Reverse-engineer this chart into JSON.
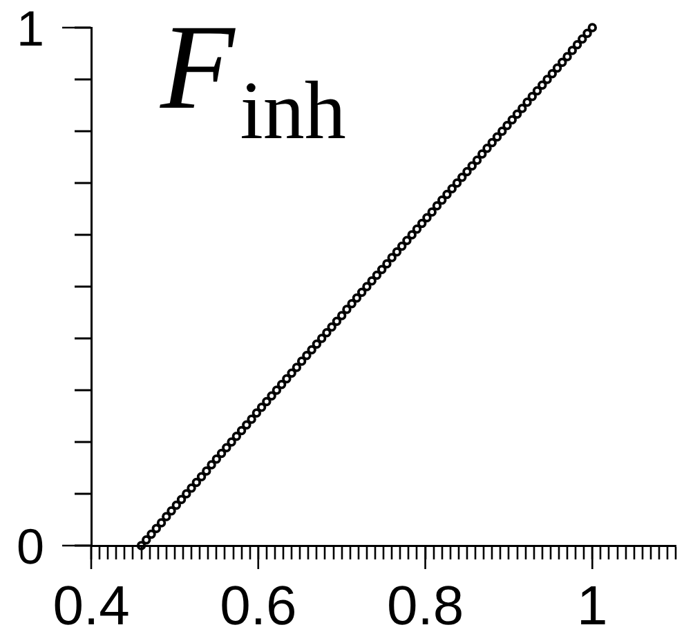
{
  "chart_data": {
    "type": "scatter",
    "title": "F$_{inh}$",
    "color": "#000000",
    "marker": "circle",
    "x": [
      0.46,
      0.466,
      0.472,
      0.478,
      0.484,
      0.49,
      0.496,
      0.502,
      0.508,
      0.514,
      0.52,
      0.526,
      0.532,
      0.538,
      0.544,
      0.55,
      0.556,
      0.562,
      0.568,
      0.574,
      0.58,
      0.586,
      0.592,
      0.598,
      0.604,
      0.61,
      0.616,
      0.622,
      0.628,
      0.634,
      0.64,
      0.646,
      0.652,
      0.658,
      0.664,
      0.67,
      0.676,
      0.682,
      0.688,
      0.694,
      0.7,
      0.706,
      0.712,
      0.718,
      0.724,
      0.73,
      0.736,
      0.742,
      0.748,
      0.754,
      0.76,
      0.766,
      0.772,
      0.778,
      0.784,
      0.79,
      0.796,
      0.802,
      0.808,
      0.814,
      0.82,
      0.826,
      0.832,
      0.838,
      0.844,
      0.85,
      0.856,
      0.862,
      0.868,
      0.874,
      0.88,
      0.886,
      0.892,
      0.898,
      0.904,
      0.91,
      0.916,
      0.922,
      0.928,
      0.934,
      0.94,
      0.946,
      0.952,
      0.958,
      0.964,
      0.97,
      0.976,
      0.982,
      0.988,
      0.994,
      1.0
    ],
    "values": [
      0,
      0.011,
      0.022,
      0.033,
      0.044,
      0.056,
      0.067,
      0.078,
      0.089,
      0.1,
      0.111,
      0.122,
      0.133,
      0.144,
      0.156,
      0.167,
      0.178,
      0.189,
      0.2,
      0.211,
      0.222,
      0.233,
      0.244,
      0.256,
      0.267,
      0.278,
      0.289,
      0.3,
      0.311,
      0.322,
      0.333,
      0.344,
      0.356,
      0.367,
      0.378,
      0.389,
      0.4,
      0.411,
      0.422,
      0.433,
      0.444,
      0.456,
      0.467,
      0.478,
      0.489,
      0.5,
      0.511,
      0.522,
      0.533,
      0.544,
      0.556,
      0.567,
      0.578,
      0.589,
      0.6,
      0.611,
      0.622,
      0.633,
      0.644,
      0.656,
      0.667,
      0.678,
      0.689,
      0.7,
      0.711,
      0.722,
      0.733,
      0.744,
      0.756,
      0.767,
      0.778,
      0.789,
      0.8,
      0.811,
      0.822,
      0.833,
      0.844,
      0.856,
      0.867,
      0.878,
      0.889,
      0.9,
      0.911,
      0.922,
      0.933,
      0.944,
      0.956,
      0.967,
      0.978,
      0.989,
      1
    ],
    "xlim": [
      0.4,
      1.1
    ],
    "xticks": [
      0.4,
      {
        "value": 0.41,
        "label": null
      },
      {
        "value": 0.42,
        "label": null
      },
      {
        "value": 0.43,
        "label": null
      },
      {
        "value": 0.44,
        "label": null
      },
      {
        "value": 0.45,
        "label": null
      },
      {
        "value": 0.46,
        "label": null
      },
      {
        "value": 0.47,
        "label": null
      },
      {
        "value": 0.48,
        "label": null
      },
      {
        "value": 0.49,
        "label": null
      },
      {
        "value": 0.5,
        "label": null
      },
      {
        "value": 0.51,
        "label": null
      },
      {
        "value": 0.52,
        "label": null
      },
      {
        "value": 0.53,
        "label": null
      },
      {
        "value": 0.54,
        "label": null
      },
      {
        "value": 0.55,
        "label": null
      },
      {
        "value": 0.56,
        "label": null
      },
      {
        "value": 0.57,
        "label": null
      },
      {
        "value": 0.58,
        "label": null
      },
      {
        "value": 0.59,
        "label": null
      },
      0.6,
      {
        "value": 0.61,
        "label": null
      },
      {
        "value": 0.62,
        "label": null
      },
      {
        "value": 0.63,
        "label": null
      },
      {
        "value": 0.64,
        "label": null
      },
      {
        "value": 0.65,
        "label": null
      },
      {
        "value": 0.66,
        "label": null
      },
      {
        "value": 0.67,
        "label": null
      },
      {
        "value": 0.68,
        "label": null
      },
      {
        "value": 0.69,
        "label": null
      },
      {
        "value": 0.7,
        "label": null
      },
      {
        "value": 0.71,
        "label": null
      },
      {
        "value": 0.72,
        "label": null
      },
      {
        "value": 0.73,
        "label": null
      },
      {
        "value": 0.74,
        "label": null
      },
      {
        "value": 0.75,
        "label": null
      },
      {
        "value": 0.76,
        "label": null
      },
      {
        "value": 0.77,
        "label": null
      },
      {
        "value": 0.78,
        "label": null
      },
      {
        "value": 0.79,
        "label": null
      },
      0.8,
      {
        "value": 0.81,
        "label": null
      },
      {
        "value": 0.82,
        "label": null
      },
      {
        "value": 0.83,
        "label": null
      },
      {
        "value": 0.84,
        "label": null
      },
      {
        "value": 0.85,
        "label": null
      },
      {
        "value": 0.86,
        "label": null
      },
      {
        "value": 0.87,
        "label": null
      },
      {
        "value": 0.88,
        "label": null
      },
      {
        "value": 0.89,
        "label": null
      },
      {
        "value": 0.9,
        "label": null
      },
      {
        "value": 0.91,
        "label": null
      },
      {
        "value": 0.92,
        "label": null
      },
      {
        "value": 0.93,
        "label": null
      },
      {
        "value": 0.94,
        "label": null
      },
      {
        "value": 0.95,
        "label": null
      },
      {
        "value": 0.96,
        "label": null
      },
      {
        "value": 0.97,
        "label": null
      },
      {
        "value": 0.98,
        "label": null
      },
      {
        "value": 0.99,
        "label": null
      },
      1,
      {
        "value": 1.01,
        "label": null
      },
      {
        "value": 1.02,
        "label": null
      },
      {
        "value": 1.03,
        "label": null
      },
      {
        "value": 1.04,
        "label": null
      },
      {
        "value": 1.05,
        "label": null
      },
      {
        "value": 1.06,
        "label": null
      },
      {
        "value": 1.07,
        "label": null
      },
      {
        "value": 1.08,
        "label": null
      },
      {
        "value": 1.09,
        "label": null
      },
      {
        "value": 1.1,
        "label": null
      }
    ],
    "ylim": [
      0,
      1
    ],
    "yticks": [
      0,
      {
        "value": 0.1,
        "label": null
      },
      {
        "value": 0.2,
        "label": null
      },
      {
        "value": 0.3,
        "label": null
      },
      {
        "value": 0.4,
        "label": null
      },
      {
        "value": 0.5,
        "label": null
      },
      {
        "value": 0.6,
        "label": null
      },
      {
        "value": 0.7,
        "label": null
      },
      {
        "value": 0.8,
        "label": null
      },
      {
        "value": 0.9,
        "label": null
      },
      1
    ]
  }
}
